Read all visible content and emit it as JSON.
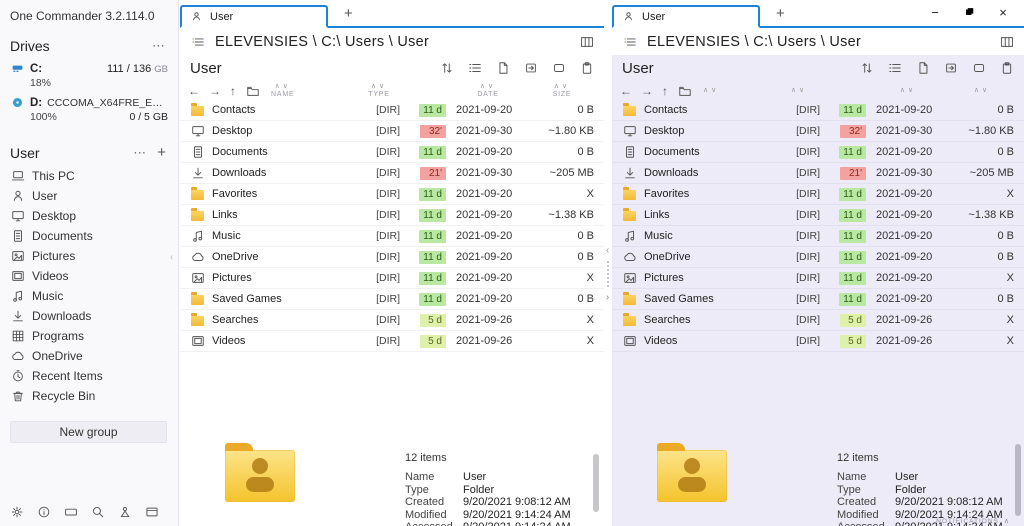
{
  "app_title": "One Commander 3.2.114.0",
  "sidebar": {
    "drives_header": "Drives",
    "drives": [
      {
        "icon": "hdd",
        "letter": "C:",
        "volume": "",
        "used_percent": "18%",
        "capacity": "111 / 136",
        "unit": "GB"
      },
      {
        "icon": "disc",
        "letter": "D:",
        "volume": "CCCOMA_X64FRE_EN-U...",
        "used_percent": "100%",
        "capacity": "0 / 5",
        "unit": "GB"
      }
    ],
    "group_header": "User",
    "items": [
      {
        "icon": "laptop",
        "label": "This PC"
      },
      {
        "icon": "person",
        "label": "User"
      },
      {
        "icon": "desktop",
        "label": "Desktop"
      },
      {
        "icon": "document",
        "label": "Documents"
      },
      {
        "icon": "picture",
        "label": "Pictures"
      },
      {
        "icon": "video",
        "label": "Videos"
      },
      {
        "icon": "music",
        "label": "Music"
      },
      {
        "icon": "download",
        "label": "Downloads"
      },
      {
        "icon": "grid",
        "label": "Programs"
      },
      {
        "icon": "cloud",
        "label": "OneDrive"
      },
      {
        "icon": "clock",
        "label": "Recent Items"
      },
      {
        "icon": "trash",
        "label": "Recycle Bin"
      }
    ],
    "new_group_label": "New group",
    "bottom_icons": [
      "settings",
      "info",
      "console",
      "search",
      "user-tools",
      "window-layout"
    ]
  },
  "pane": {
    "tab_label": "User",
    "breadcrumb": "ELEVENSIES \\ C:\\ Users \\ User",
    "title": "User",
    "toolbar_icons": [
      "sort",
      "group-list",
      "new-file",
      "move-into-folder",
      "tag",
      "clipboard"
    ],
    "columns": [
      "NAME",
      "TYPE",
      "DATE",
      "SIZE"
    ],
    "item_count": "12 items",
    "details": [
      [
        "Name",
        "User"
      ],
      [
        "Type",
        "Folder"
      ],
      [
        "Created",
        "9/20/2021 9:08:12 AM"
      ],
      [
        "Modified",
        "9/20/2021 9:14:24 AM"
      ],
      [
        "Accessed",
        "9/20/2021 9:14:24 AM"
      ]
    ]
  },
  "files": [
    {
      "icon": "folder",
      "name": "Contacts",
      "type": "[DIR]",
      "age": "11 d",
      "age_level": "green",
      "date": "2021-09-20",
      "size": "0 B"
    },
    {
      "icon": "desktop",
      "name": "Desktop",
      "type": "[DIR]",
      "age": "32'",
      "age_level": "red",
      "date": "2021-09-30",
      "size": "~1.80 KB"
    },
    {
      "icon": "document",
      "name": "Documents",
      "type": "[DIR]",
      "age": "11 d",
      "age_level": "green",
      "date": "2021-09-20",
      "size": "0 B"
    },
    {
      "icon": "download",
      "name": "Downloads",
      "type": "[DIR]",
      "age": "21'",
      "age_level": "red",
      "date": "2021-09-30",
      "size": "~205 MB"
    },
    {
      "icon": "folder",
      "name": "Favorites",
      "type": "[DIR]",
      "age": "11 d",
      "age_level": "green",
      "date": "2021-09-20",
      "size": "X"
    },
    {
      "icon": "folder",
      "name": "Links",
      "type": "[DIR]",
      "age": "11 d",
      "age_level": "green",
      "date": "2021-09-20",
      "size": "~1.38 KB"
    },
    {
      "icon": "music",
      "name": "Music",
      "type": "[DIR]",
      "age": "11 d",
      "age_level": "green",
      "date": "2021-09-20",
      "size": "0 B"
    },
    {
      "icon": "cloud",
      "name": "OneDrive",
      "type": "[DIR]",
      "age": "11 d",
      "age_level": "green",
      "date": "2021-09-20",
      "size": "0 B"
    },
    {
      "icon": "picture",
      "name": "Pictures",
      "type": "[DIR]",
      "age": "11 d",
      "age_level": "green",
      "date": "2021-09-20",
      "size": "X"
    },
    {
      "icon": "folder",
      "name": "Saved Games",
      "type": "[DIR]",
      "age": "11 d",
      "age_level": "green",
      "date": "2021-09-20",
      "size": "0 B"
    },
    {
      "icon": "folder",
      "name": "Searches",
      "type": "[DIR]",
      "age": "5 d",
      "age_level": "lime",
      "date": "2021-09-26",
      "size": "X"
    },
    {
      "icon": "video",
      "name": "Videos",
      "type": "[DIR]",
      "age": "5 d",
      "age_level": "lime",
      "date": "2021-09-26",
      "size": "X"
    }
  ],
  "right_pane": {
    "notifications_label": "NOTIFICATIONS"
  },
  "colors": {
    "accent": "#1b83d8",
    "right_pane_bg": "#edebf7",
    "badge_green_bg": "#b9e8a3",
    "badge_red_bg": "#f2a3a0",
    "badge_lime_bg": "#def0aa",
    "folder_gold": "#f5c32c"
  }
}
